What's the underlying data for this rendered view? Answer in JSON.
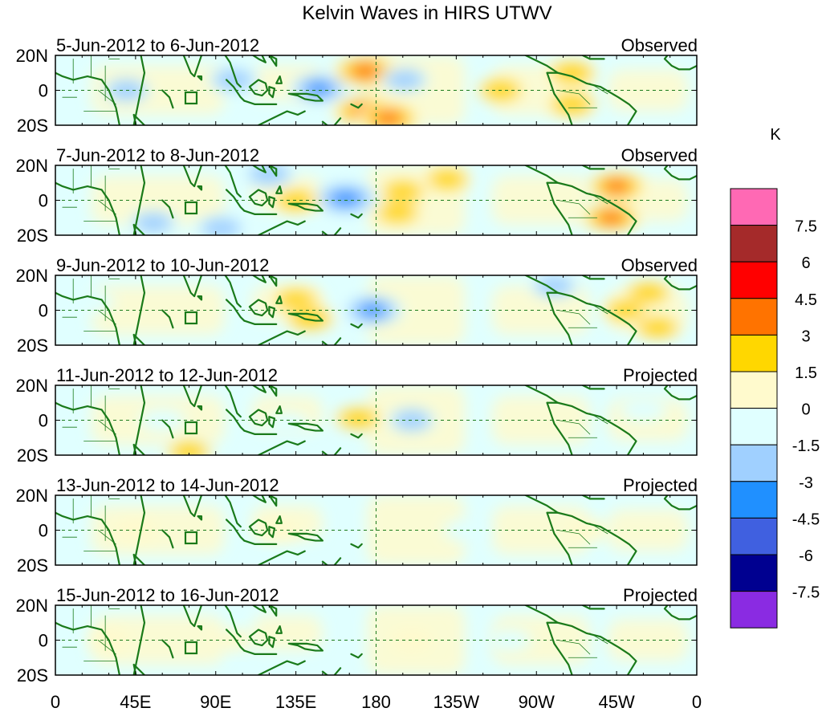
{
  "chart_data": {
    "type": "heatmap",
    "title": "Kelvin Waves in HIRS UTWV",
    "units_label": "K",
    "x_ticks": [
      "0",
      "45E",
      "90E",
      "135E",
      "180",
      "135W",
      "90W",
      "45W",
      "0"
    ],
    "y_ticks": [
      "20N",
      "0",
      "20S"
    ],
    "lon_range": [
      0,
      360
    ],
    "lat_range": [
      -20,
      20
    ],
    "colorbar": {
      "levels": [
        "7.5",
        "6",
        "4.5",
        "3",
        "1.5",
        "0",
        "-1.5",
        "-3",
        "-4.5",
        "-6",
        "-7.5"
      ],
      "colors": [
        "#ff69b4",
        "#a52a2a",
        "#ff0000",
        "#ff7300",
        "#ffd700",
        "#fffacd",
        "#e0ffff",
        "#a0d0ff",
        "#2090ff",
        "#4060e0",
        "#000090",
        "#8a2be2"
      ]
    },
    "panels": [
      {
        "period": "5-Jun-2012 to 6-Jun-2012",
        "status": "Observed",
        "anomalies": [
          {
            "lon": 148,
            "lat": 1,
            "value": -3.0
          },
          {
            "lon": 174,
            "lat": 11,
            "value": 3.8
          },
          {
            "lon": 174,
            "lat": -12,
            "value": 4.0
          },
          {
            "lon": 187,
            "lat": -16,
            "value": 3.5
          },
          {
            "lon": 196,
            "lat": 6,
            "value": -1.5
          },
          {
            "lon": 250,
            "lat": 0,
            "value": 1.8
          },
          {
            "lon": 290,
            "lat": 10,
            "value": 2.0
          },
          {
            "lon": 290,
            "lat": -8,
            "value": 2.0
          },
          {
            "lon": 40,
            "lat": 0,
            "value": -1.5
          },
          {
            "lon": 100,
            "lat": 6,
            "value": -1.8
          }
        ]
      },
      {
        "period": "7-Jun-2012 to 8-Jun-2012",
        "status": "Observed",
        "anomalies": [
          {
            "lon": 163,
            "lat": 1,
            "value": -4.0
          },
          {
            "lon": 135,
            "lat": 0,
            "value": 1.8
          },
          {
            "lon": 195,
            "lat": 5,
            "value": 1.8
          },
          {
            "lon": 192,
            "lat": -7,
            "value": 1.8
          },
          {
            "lon": 315,
            "lat": 8,
            "value": 3.2
          },
          {
            "lon": 312,
            "lat": -10,
            "value": 3.2
          },
          {
            "lon": 120,
            "lat": 15,
            "value": -2.0
          },
          {
            "lon": 93,
            "lat": -16,
            "value": -1.8
          },
          {
            "lon": 220,
            "lat": 12,
            "value": 1.6
          },
          {
            "lon": 55,
            "lat": -13,
            "value": -1.5
          }
        ]
      },
      {
        "period": "9-Jun-2012 to 10-Jun-2012",
        "status": "Observed",
        "anomalies": [
          {
            "lon": 178,
            "lat": 0,
            "value": -3.2
          },
          {
            "lon": 135,
            "lat": 6,
            "value": 1.8
          },
          {
            "lon": 143,
            "lat": -5,
            "value": 2.0
          },
          {
            "lon": 333,
            "lat": 10,
            "value": 1.7
          },
          {
            "lon": 338,
            "lat": -10,
            "value": 1.7
          },
          {
            "lon": 280,
            "lat": 14,
            "value": -1.5
          },
          {
            "lon": 20,
            "lat": 5,
            "value": -1.2
          },
          {
            "lon": 320,
            "lat": 0,
            "value": 1.5
          }
        ]
      },
      {
        "period": "11-Jun-2012 to 12-Jun-2012",
        "status": "Projected",
        "anomalies": [
          {
            "lon": 170,
            "lat": 1,
            "value": 1.8
          },
          {
            "lon": 200,
            "lat": 0,
            "value": -1.5
          },
          {
            "lon": 60,
            "lat": 0,
            "value": -1.2
          },
          {
            "lon": 75,
            "lat": -18,
            "value": 1.5
          },
          {
            "lon": 130,
            "lat": -2,
            "value": -1.0
          },
          {
            "lon": 330,
            "lat": 6,
            "value": -1.2
          }
        ]
      },
      {
        "period": "13-Jun-2012 to 14-Jun-2012",
        "status": "Projected",
        "anomalies": [
          {
            "lon": 45,
            "lat": 0,
            "value": 0.8
          },
          {
            "lon": 125,
            "lat": 0,
            "value": 0.8
          },
          {
            "lon": 230,
            "lat": 0,
            "value": -0.8
          },
          {
            "lon": 300,
            "lat": 0,
            "value": 0.8
          }
        ]
      },
      {
        "period": "15-Jun-2012 to 16-Jun-2012",
        "status": "Projected",
        "anomalies": [
          {
            "lon": 30,
            "lat": 0,
            "value": 0.8
          },
          {
            "lon": 100,
            "lat": 0,
            "value": 0.8
          },
          {
            "lon": 200,
            "lat": 0,
            "value": 0.8
          },
          {
            "lon": 255,
            "lat": 0,
            "value": -0.8
          }
        ]
      }
    ]
  }
}
